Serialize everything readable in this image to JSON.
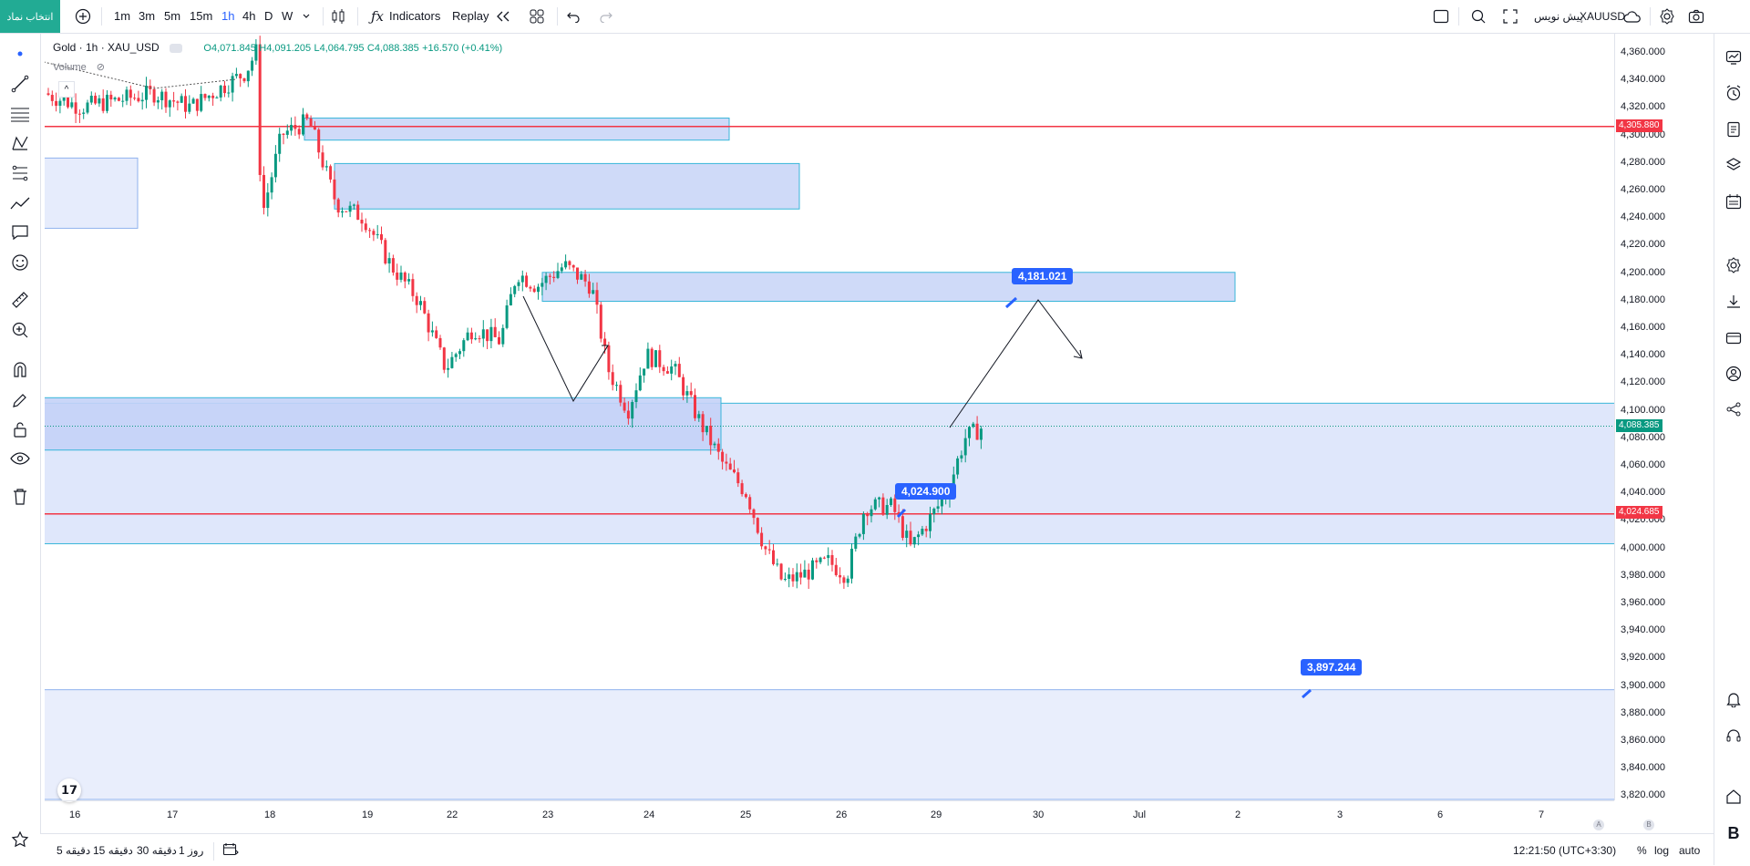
{
  "header": {
    "symbol_button": "انتخاب نماد",
    "timeframes": [
      "1m",
      "3m",
      "5m",
      "15m",
      "1h",
      "4h",
      "D",
      "W"
    ],
    "active_timeframe": "1h",
    "indicators_label": "Indicators",
    "replay_label": "Replay",
    "publish_label": "پیش نویس",
    "symbol_code": "XAUUSD"
  },
  "legend": {
    "title": "Gold · 1h · XAU_USD",
    "open": "O4,071.845",
    "high": "H4,091.205",
    "low": "L4,064.795",
    "close": "C4,088.385",
    "change": "+16.570 (+0.41%)",
    "volume_label": "Volume"
  },
  "price_axis": {
    "labels": [
      "4,360.000",
      "4,340.000",
      "4,320.000",
      "4,300.000",
      "4,280.000",
      "4,260.000",
      "4,240.000",
      "4,220.000",
      "4,200.000",
      "4,180.000",
      "4,160.000",
      "4,140.000",
      "4,120.000",
      "4,100.000",
      "4,080.000",
      "4,060.000",
      "4,040.000",
      "4,020.000",
      "4,000.000",
      "3,980.000",
      "3,960.000",
      "3,940.000",
      "3,920.000",
      "3,900.000",
      "3,880.000",
      "3,860.000",
      "3,840.000",
      "3,820.000"
    ],
    "tag_upper": "4,305.880",
    "tag_current": "4,088.385",
    "tag_lower": "4,024.685",
    "colors": {
      "red_tag": "#f23645",
      "green_tag": "#089981"
    }
  },
  "time_axis": {
    "labels": [
      "16",
      "17",
      "18",
      "19",
      "22",
      "23",
      "24",
      "25",
      "26",
      "29",
      "30",
      "Jul",
      "2",
      "3",
      "6",
      "7"
    ],
    "corner_a": "A",
    "corner_b": "B"
  },
  "callouts": {
    "upper_target": "4,181.021",
    "middle": "4,024.900",
    "lower_target": "3,897.244"
  },
  "bottom": {
    "ranges": [
      "5 دقیقه",
      "15 دقیقه",
      "30 دقیقه",
      "1 روز"
    ],
    "clock": "12:21:50 (UTC+3:30)",
    "percent": "%",
    "log": "log",
    "auto": "auto"
  },
  "colors": {
    "accent": "#2962ff",
    "up": "#089981",
    "down": "#f23645",
    "zone_fill": "#c7d4f7",
    "zone_border": "#38b6d9"
  }
}
